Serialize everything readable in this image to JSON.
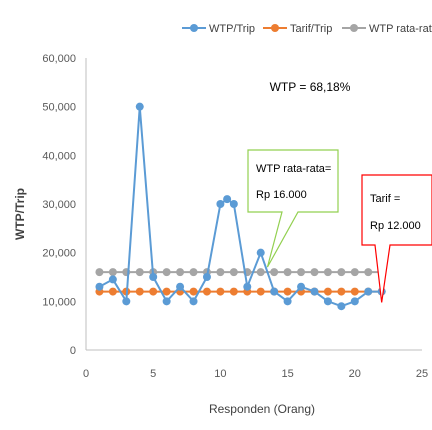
{
  "chart_data": {
    "type": "line",
    "xlabel": "Responden (Orang)",
    "ylabel": "WTP/Trip",
    "xlim": [
      0,
      25
    ],
    "ylim": [
      0,
      60000
    ],
    "x_ticks": [
      "0",
      "5",
      "10",
      "15",
      "20",
      "25"
    ],
    "y_ticks": [
      "0",
      "10,000",
      "20,000",
      "30,000",
      "40,000",
      "50,000",
      "60,000"
    ],
    "grid": false,
    "legend_position": "top",
    "series": [
      {
        "name": "WTP/Trip",
        "color": "#5B9BD5",
        "x": [
          1,
          2,
          3,
          4,
          5,
          6,
          7,
          8,
          9,
          10,
          10.5,
          11,
          12,
          13,
          14,
          15,
          16,
          17,
          18,
          19,
          20,
          21,
          22
        ],
        "y": [
          13000,
          14500,
          10000,
          50000,
          15000,
          10000,
          13000,
          10000,
          15000,
          30000,
          31000,
          30000,
          13000,
          20000,
          12000,
          10000,
          13000,
          12000,
          10000,
          9000,
          10000,
          12000,
          12000
        ]
      },
      {
        "name": "Tarif/Trip",
        "color": "#ED7D31",
        "x": [
          1,
          2,
          3,
          4,
          5,
          6,
          7,
          8,
          9,
          10,
          11,
          12,
          13,
          14,
          15,
          16,
          17,
          18,
          19,
          20,
          21,
          22
        ],
        "y": [
          12000,
          12000,
          12000,
          12000,
          12000,
          12000,
          12000,
          12000,
          12000,
          12000,
          12000,
          12000,
          12000,
          12000,
          12000,
          12000,
          12000,
          12000,
          12000,
          12000,
          12000,
          12000
        ]
      },
      {
        "name": "WTP rata-rata",
        "color": "#A5A5A5",
        "x": [
          1,
          2,
          3,
          4,
          5,
          6,
          7,
          8,
          9,
          10,
          11,
          12,
          13,
          14,
          15,
          16,
          17,
          18,
          19,
          20,
          21,
          22
        ],
        "y": [
          16000,
          16000,
          16000,
          16000,
          16000,
          16000,
          16000,
          16000,
          16000,
          16000,
          16000,
          16000,
          16000,
          16000,
          16000,
          16000,
          16000,
          16000,
          16000,
          16000,
          16000,
          16000
        ]
      }
    ],
    "annotations": {
      "wtp_percent": "WTP = 68,18%",
      "wtp_avg_line1": "WTP rata-rata=",
      "wtp_avg_line2": "Rp 16.000",
      "wtp_avg_border": "#92D050",
      "tarif_line1": "Tarif =",
      "tarif_line2": "Rp 12.000",
      "tarif_border": "#FF0000",
      "wtp_avg_point": [
        13.5,
        16000
      ],
      "tarif_point": [
        22,
        11000
      ]
    }
  }
}
